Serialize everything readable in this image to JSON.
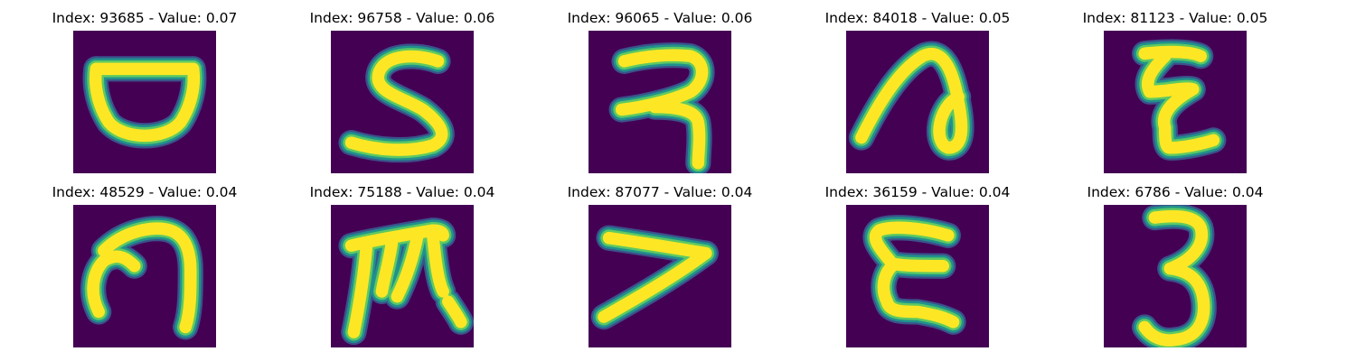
{
  "colors": {
    "background": "#440154",
    "stroke_core": "#fde725",
    "stroke_mid": "#5ec962",
    "stroke_edge": "#21918c",
    "stroke_outer": "#3b528b"
  },
  "panels": [
    {
      "title": "Index: 93685 - Value: 0.07",
      "glyph": "bowl-shape"
    },
    {
      "title": "Index: 96758 - Value: 0.06",
      "glyph": "s-shape"
    },
    {
      "title": "Index: 96065 - Value: 0.06",
      "glyph": "ra-shape"
    },
    {
      "title": "Index: 84018 - Value: 0.05",
      "glyph": "loop-shape"
    },
    {
      "title": "Index: 81123 - Value: 0.05",
      "glyph": "zigzag-shape"
    },
    {
      "title": "Index: 48529 - Value: 0.04",
      "glyph": "hook-shape"
    },
    {
      "title": "Index: 75188 - Value: 0.04",
      "glyph": "ma-shape"
    },
    {
      "title": "Index: 87077 - Value: 0.04",
      "glyph": "seven-shape"
    },
    {
      "title": "Index: 36159 - Value: 0.04",
      "glyph": "epsilon-shape"
    },
    {
      "title": "Index: 6786 - Value: 0.04",
      "glyph": "three-shape"
    }
  ]
}
